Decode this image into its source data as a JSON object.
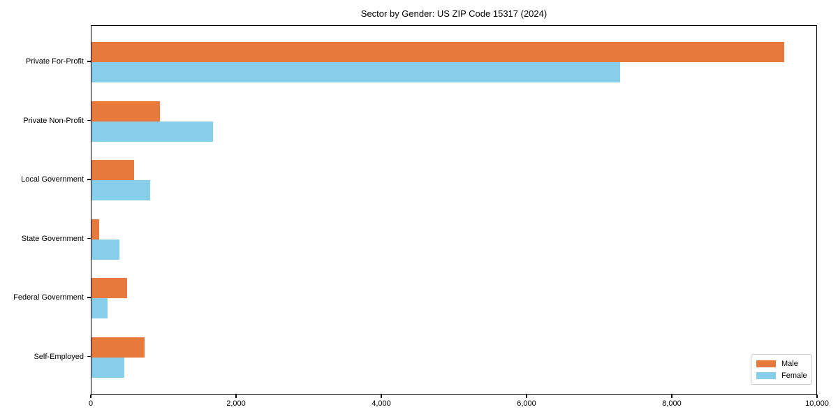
{
  "chart_data": {
    "type": "bar",
    "orientation": "horizontal",
    "title": "Sector by Gender: US ZIP Code 15317 (2024)",
    "categories": [
      "Private For-Profit",
      "Private Non-Profit",
      "Local Government",
      "State Government",
      "Federal Government",
      "Self-Employed"
    ],
    "series": [
      {
        "name": "Male",
        "color": "#e8793d",
        "values": [
          9540,
          945,
          585,
          105,
          495,
          730
        ]
      },
      {
        "name": "Female",
        "color": "#87ceeb",
        "values": [
          7275,
          1670,
          810,
          385,
          225,
          455
        ]
      }
    ],
    "xlim": [
      0,
      10000
    ],
    "x_ticks": [
      0,
      2000,
      4000,
      6000,
      8000,
      10000
    ],
    "x_tick_labels": [
      "0",
      "2,000",
      "4,000",
      "6,000",
      "8,000",
      "10,000"
    ],
    "xlabel": "",
    "ylabel": "",
    "grid": false,
    "legend_position": "lower right"
  }
}
